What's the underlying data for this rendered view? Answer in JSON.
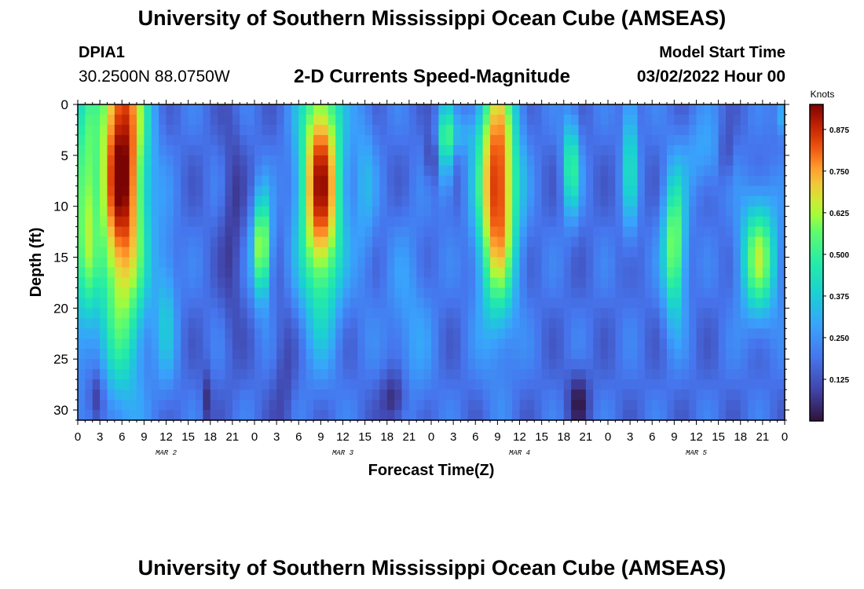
{
  "header": {
    "title": "University of Southern Mississippi Ocean Cube (AMSEAS)",
    "station": "DPIA1",
    "coords": "30.2500N  88.0750W",
    "subtitle": "2-D Currents Speed-Magnitude",
    "model_start_label": "Model Start Time",
    "model_start_value": "03/02/2022 Hour 00"
  },
  "footer": {
    "title": "University of Southern Mississippi Ocean Cube (AMSEAS)"
  },
  "chart_data": {
    "type": "heatmap",
    "xlabel": "Forecast Time(Z)",
    "ylabel": "Depth (ft)",
    "x_tick_labels": [
      "0",
      "3",
      "6",
      "9",
      "12",
      "15",
      "18",
      "21",
      "0",
      "3",
      "6",
      "9",
      "12",
      "15",
      "18",
      "21",
      "0",
      "3",
      "6",
      "9",
      "12",
      "15",
      "18",
      "21",
      "0",
      "3",
      "6",
      "9",
      "12",
      "15",
      "18",
      "21",
      "0"
    ],
    "x_range_hours": [
      0,
      96
    ],
    "date_labels": [
      {
        "hour": 12,
        "label": "MAR 2"
      },
      {
        "hour": 36,
        "label": "MAR 3"
      },
      {
        "hour": 60,
        "label": "MAR 4"
      },
      {
        "hour": 84,
        "label": "MAR 5"
      }
    ],
    "y_ticks": [
      0,
      5,
      10,
      15,
      20,
      25,
      30
    ],
    "ylim": [
      0,
      31
    ],
    "y_inverted": true,
    "colorbar": {
      "label": "Knots",
      "range": [
        0,
        0.95
      ],
      "ticks": [
        "0.875",
        "0.750",
        "0.625",
        "0.500",
        "0.375",
        "0.250",
        "0.125"
      ],
      "tick_values": [
        0.875,
        0.75,
        0.625,
        0.5,
        0.375,
        0.25,
        0.125
      ],
      "colormap": "turbo"
    },
    "speed_peaks_knots": [
      {
        "hour": 6.5,
        "depth": 8,
        "value": 0.9
      },
      {
        "hour": 33,
        "depth": 10,
        "value": 0.85
      },
      {
        "hour": 57,
        "depth": 10,
        "value": 0.85
      },
      {
        "hour": 81,
        "depth": 14,
        "value": 0.6
      },
      {
        "hour": 93,
        "depth": 15,
        "value": 0.55
      }
    ]
  }
}
